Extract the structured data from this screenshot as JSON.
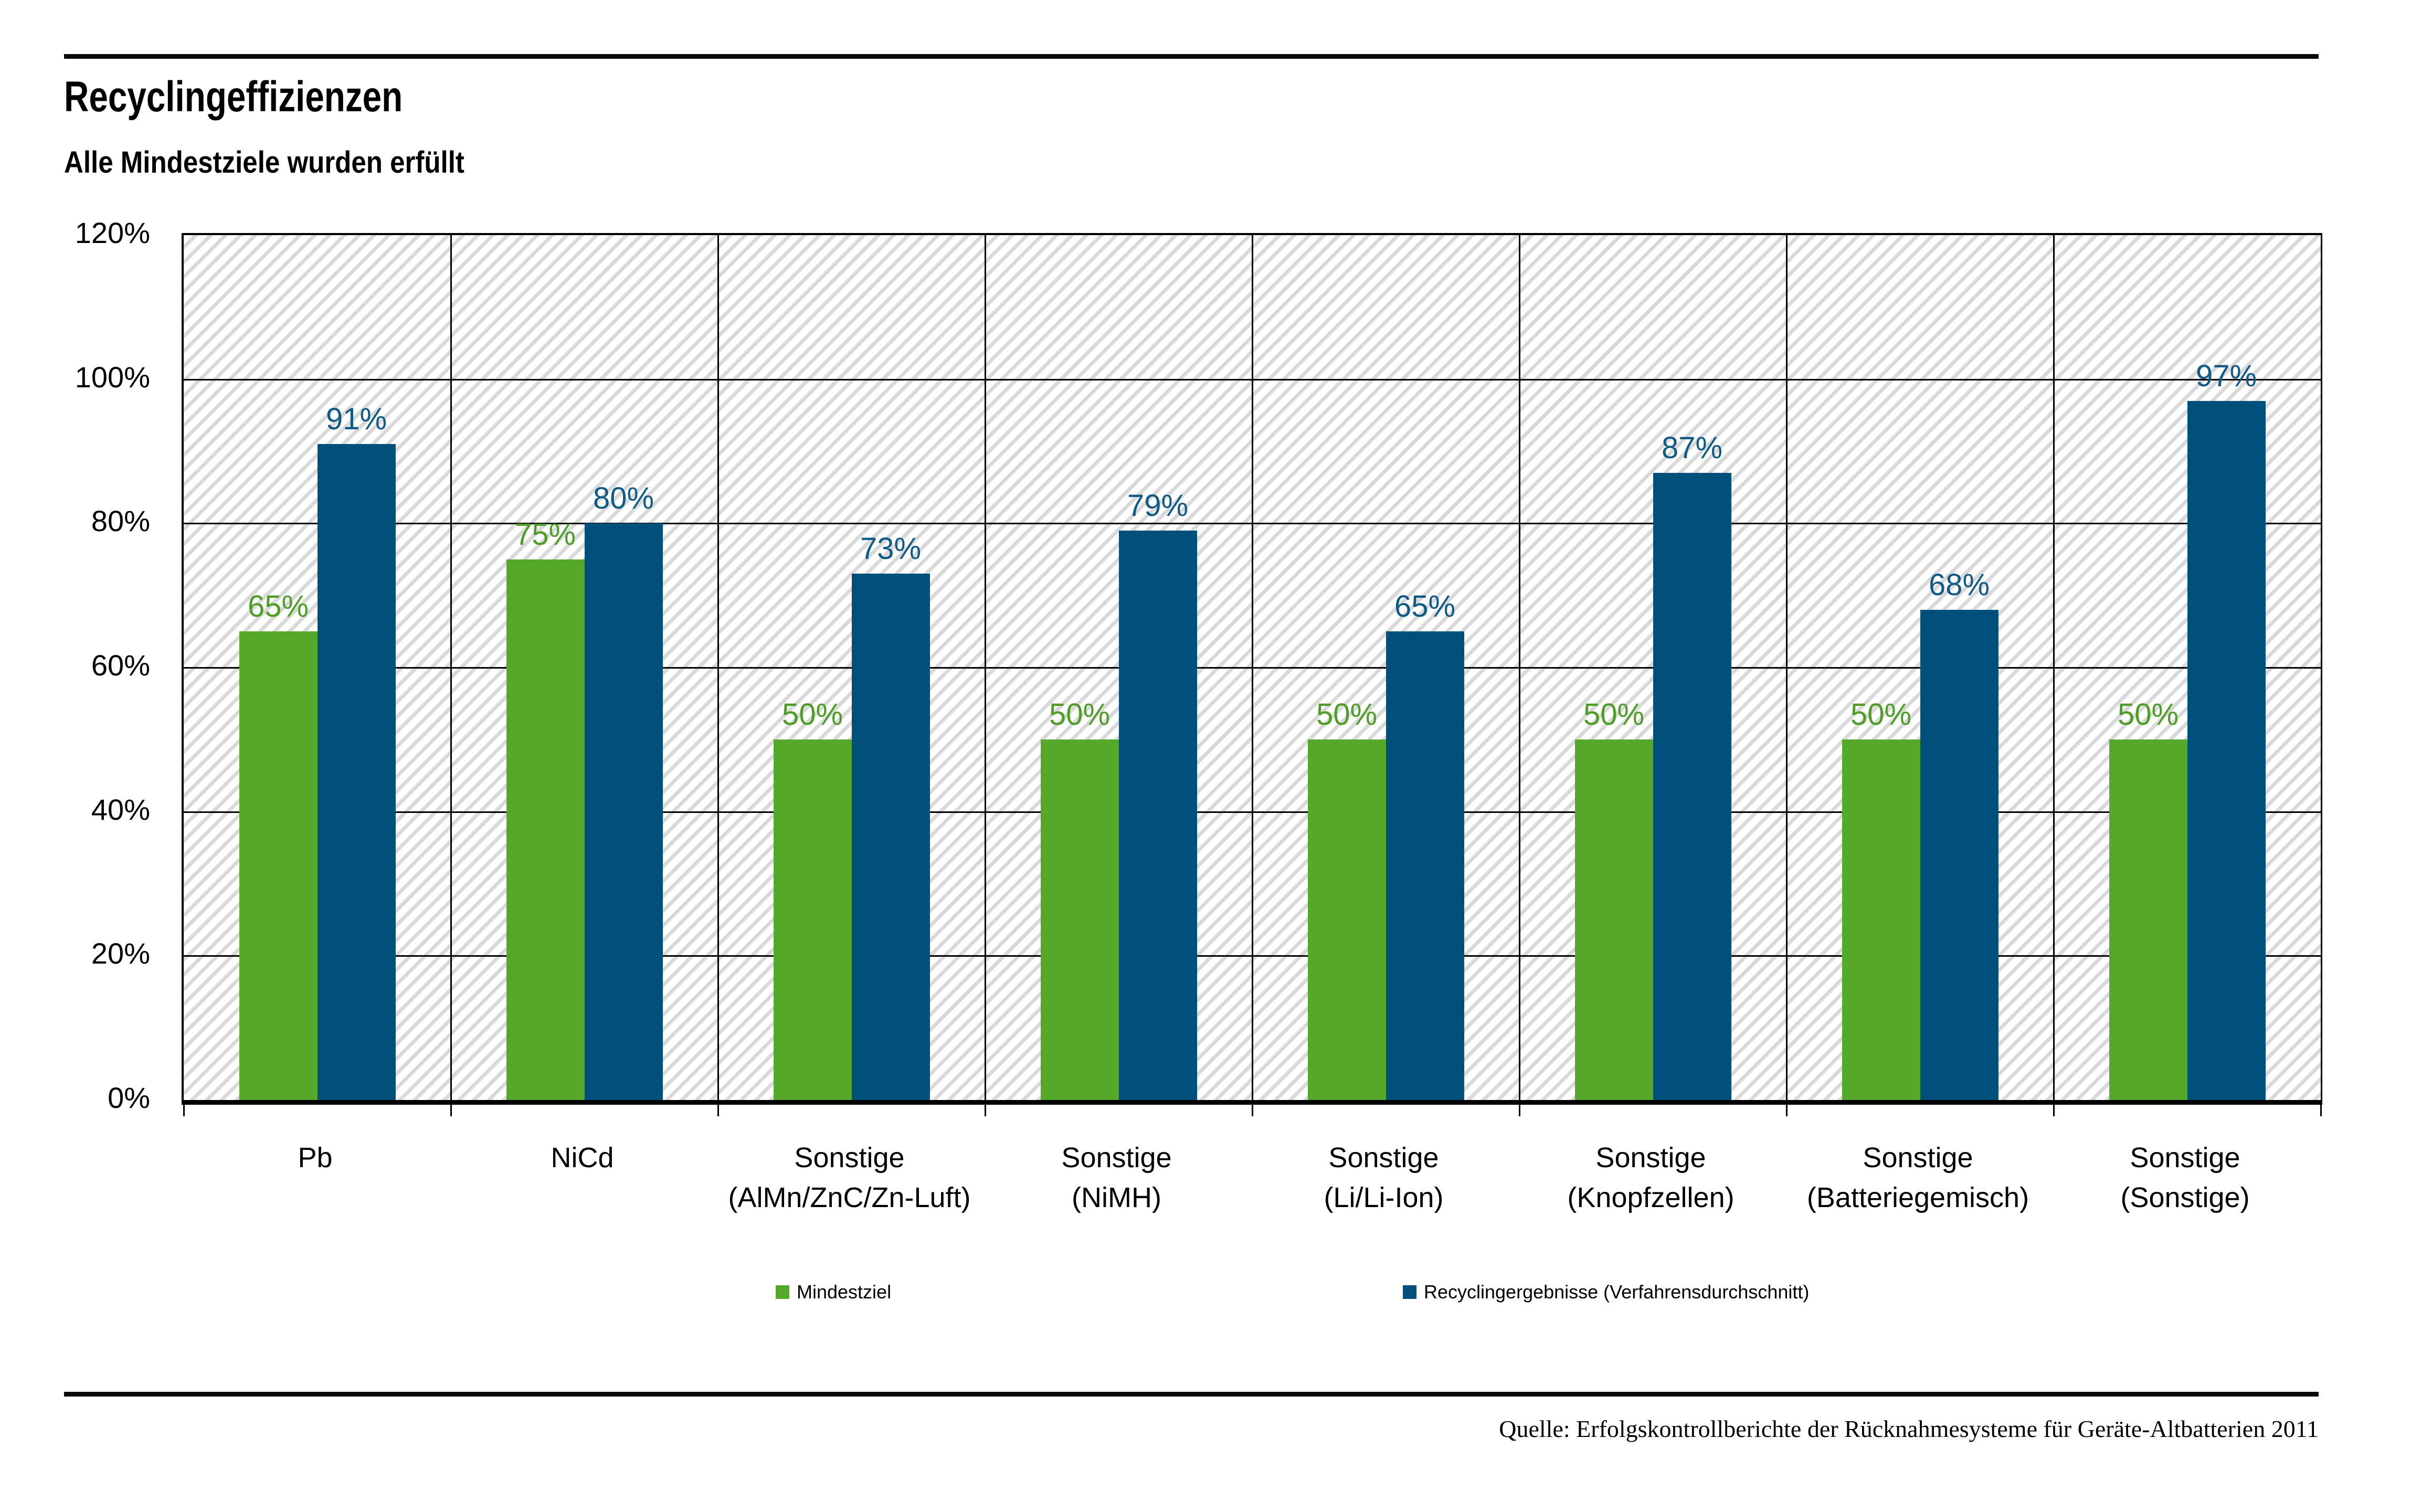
{
  "title": "Recyclingeffizienzen",
  "subtitle": "Alle Mindestziele wurden erfüllt",
  "source": "Quelle: Erfolgskontrollberichte der Rücknahmesysteme für Geräte-Altbatterien 2011",
  "colors": {
    "bar_green": "#56A82B",
    "bar_blue": "#00507C",
    "label_green": "#4E9D26",
    "label_blue": "#0F5A87",
    "hatch_gray": "#D9D9D9",
    "grid_black": "#000000"
  },
  "legend": [
    {
      "label": "Mindestziel",
      "color_key": "bar_green"
    },
    {
      "label": "Recyclingergebnisse (Verfahrensdurchschnitt)",
      "color_key": "bar_blue"
    }
  ],
  "chart_data": {
    "type": "bar",
    "title": "Recyclingeffizienzen",
    "subtitle": "Alle Mindestziele wurden erfüllt",
    "categories": [
      [
        "Pb",
        ""
      ],
      [
        "NiCd",
        ""
      ],
      [
        "Sonstige",
        "(AlMn/ZnC/Zn-Luft)"
      ],
      [
        "Sonstige",
        "(NiMH)"
      ],
      [
        "Sonstige",
        "(Li/Li-Ion)"
      ],
      [
        "Sonstige",
        "(Knopfzellen)"
      ],
      [
        "Sonstige",
        "(Batteriegemisch)"
      ],
      [
        "Sonstige",
        "(Sonstige)"
      ]
    ],
    "series": [
      {
        "name": "Mindestziel",
        "values": [
          65,
          75,
          50,
          50,
          50,
          50,
          50,
          50
        ],
        "color_key": "bar_green",
        "label_color_key": "label_green"
      },
      {
        "name": "Recyclingergebnisse (Verfahrensdurchschnitt)",
        "values": [
          91,
          80,
          73,
          79,
          65,
          87,
          68,
          97
        ],
        "color_key": "bar_blue",
        "label_color_key": "label_blue"
      }
    ],
    "value_suffix": "%",
    "xlabel": "",
    "ylabel": "",
    "ylim": [
      0,
      120
    ],
    "ytick_step": 20,
    "ytick_labels": [
      "0%",
      "20%",
      "40%",
      "60%",
      "80%",
      "100%",
      "120%"
    ],
    "grid": true,
    "plot_background": "diagonal-hatch",
    "legend_position": "bottom",
    "source": "Quelle: Erfolgskontrollberichte der Rücknahmesysteme für Geräte-Altbatterien 2011"
  }
}
